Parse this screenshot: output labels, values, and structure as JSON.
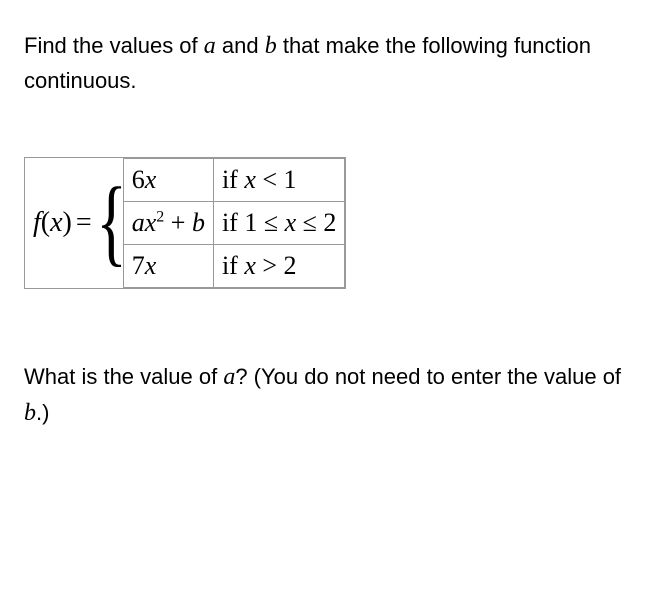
{
  "intro": {
    "part1": "Find the values of ",
    "var_a": "a",
    "part2": " and ",
    "var_b": "b",
    "part3": " that make the following function continuous."
  },
  "piecewise": {
    "lhs_f": "f",
    "lhs_x": "x",
    "eq": "=",
    "rows": [
      {
        "expr_prefix": "6",
        "expr_var": "x",
        "expr_sup": "",
        "expr_plus": "",
        "expr_b": "",
        "cond_prefix": "if ",
        "cond_var": "x",
        "cond_rel": " < 1"
      },
      {
        "expr_a": "a",
        "expr_var": "x",
        "expr_sup": "2",
        "expr_plus": " + ",
        "expr_b": "b",
        "cond_prefix": "if ",
        "cond_rel": "1 ≤ ",
        "cond_var": "x",
        "cond_rel2": " ≤ 2"
      },
      {
        "expr_prefix": "7",
        "expr_var": "x",
        "expr_sup": "",
        "expr_plus": "",
        "expr_b": "",
        "cond_prefix": "if ",
        "cond_var": "x",
        "cond_rel": " > 2"
      }
    ]
  },
  "question": {
    "part1": "What is the value of ",
    "var_a": "a",
    "part2": "? (You do not need to enter the value of ",
    "var_b": "b",
    "part3": ".)"
  },
  "style": {
    "border_color": "#999999",
    "text_color": "#000000",
    "bg_color": "#ffffff",
    "body_fontsize": 22,
    "math_fontsize": 26,
    "brace_fontsize": 98
  }
}
